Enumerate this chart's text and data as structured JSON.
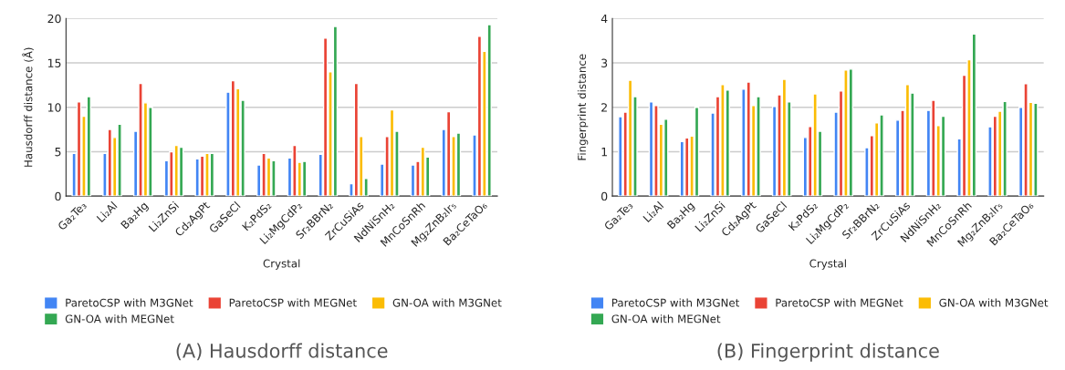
{
  "chart_data": [
    {
      "type": "bar",
      "title": "(A) Hausdorff distance",
      "xlabel": "Crystal",
      "ylabel": "Hausdorff distance (Å)",
      "categories": [
        "Ga₂Te₃",
        "Li₂Al",
        "Ba₂Hg",
        "Li₂ZnSi",
        "Cd₂AgPt",
        "GaSeCl",
        "K₂PdS₂",
        "Li₂MgCdP₂",
        "Sr₂BBrN₂",
        "ZrCuSiAs",
        "NdNiSnH₂",
        "MnCoSnRh",
        "Mg₂ZnB₂Ir₅",
        "Ba₂CeTaO₆"
      ],
      "series": [
        {
          "name": "ParetoCSP with M3GNet",
          "color": "#4285f4",
          "values": [
            4.8,
            4.8,
            7.3,
            4.0,
            4.2,
            11.7,
            3.5,
            4.3,
            4.7,
            1.4,
            3.6,
            3.5,
            7.5,
            6.9
          ]
        },
        {
          "name": "ParetoCSP with MEGNet",
          "color": "#ea4335",
          "values": [
            10.6,
            7.5,
            12.7,
            5.0,
            4.5,
            13.0,
            4.8,
            5.7,
            17.8,
            12.7,
            6.7,
            3.9,
            9.5,
            18.0
          ]
        },
        {
          "name": "GN-OA with M3GNet",
          "color": "#fbbc04",
          "values": [
            9.0,
            6.6,
            10.5,
            5.7,
            4.8,
            12.1,
            4.3,
            3.8,
            14.0,
            6.7,
            9.7,
            5.5,
            6.7,
            16.3
          ]
        },
        {
          "name": "GN-OA with MEGNet",
          "color": "#34a853",
          "values": [
            11.2,
            8.1,
            10.0,
            5.5,
            4.8,
            10.8,
            4.0,
            3.9,
            19.1,
            2.0,
            7.3,
            4.4,
            7.1,
            19.3
          ]
        }
      ],
      "ylim": [
        0,
        20
      ],
      "yticks": [
        0,
        5,
        10,
        15,
        20
      ],
      "grid": "y",
      "legend": "bottom"
    },
    {
      "type": "bar",
      "title": "(B) Fingerprint distance",
      "xlabel": "Crystal",
      "ylabel": "Fingerprint distance",
      "categories": [
        "Ga₂Te₃",
        "Li₂Al",
        "Ba₂Hg",
        "Li₂ZnSi",
        "Cd₂AgPt",
        "GaSeCl",
        "K₂PdS₂",
        "Li₂MgCdP₂",
        "Sr₂BBrN₂",
        "ZrCuSiAs",
        "NdNiSnH₂",
        "MnCoSnRh",
        "Mg₂ZnB₂Ir₅",
        "Ba₂CeTaO₆"
      ],
      "series": [
        {
          "name": "ParetoCSP with M3GNet",
          "color": "#4285f4",
          "values": [
            1.79,
            2.12,
            1.23,
            1.87,
            2.41,
            2.02,
            1.32,
            1.89,
            1.09,
            1.71,
            1.93,
            1.29,
            1.56,
            2.0
          ]
        },
        {
          "name": "ParetoCSP with MEGNet",
          "color": "#ea4335",
          "values": [
            1.89,
            2.04,
            1.31,
            2.24,
            2.57,
            2.28,
            1.57,
            2.37,
            1.36,
            1.93,
            2.16,
            2.72,
            1.8,
            2.53
          ]
        },
        {
          "name": "GN-OA with M3GNet",
          "color": "#fbbc04",
          "values": [
            2.61,
            1.62,
            1.35,
            2.51,
            2.04,
            2.63,
            2.3,
            2.84,
            1.65,
            2.51,
            1.59,
            3.07,
            1.91,
            2.11
          ]
        },
        {
          "name": "GN-OA with MEGNet",
          "color": "#34a853",
          "values": [
            2.24,
            1.73,
            2.0,
            2.39,
            2.24,
            2.12,
            1.46,
            2.86,
            1.83,
            2.32,
            1.8,
            3.65,
            2.13,
            2.09
          ]
        }
      ],
      "ylim": [
        0,
        4
      ],
      "yticks": [
        0,
        1,
        2,
        3,
        4
      ],
      "grid": "y",
      "legend": "bottom"
    }
  ]
}
